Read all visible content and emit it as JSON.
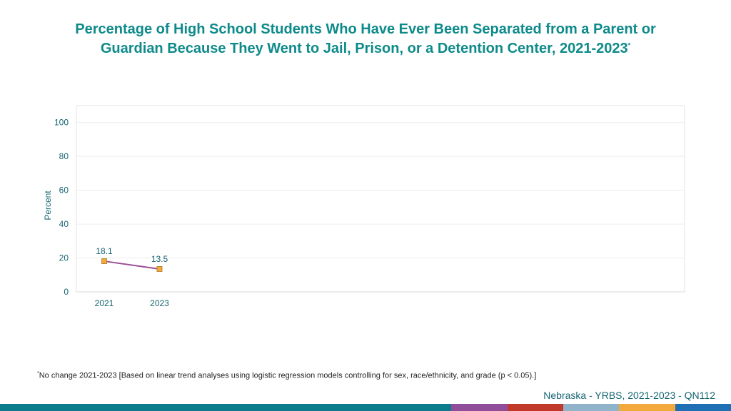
{
  "header": {
    "title_line1": "Percentage of High School Students Who Have Ever Been Separated from a Parent or",
    "title_line2": "Guardian Because They Went to Jail, Prison, or a Detention Center, 2021-2023",
    "title_marker": "*"
  },
  "chart_data": {
    "type": "line",
    "title": "Percentage of High School Students Who Have Ever Been Separated from a Parent or Guardian Because They Went to Jail, Prison, or a Detention Center, 2021-2023",
    "xlabel": "",
    "ylabel": "Percent",
    "x": [
      "2021",
      "2023"
    ],
    "series": [
      {
        "values": [
          18.1,
          13.5
        ],
        "color": "#9b4f96",
        "marker_color": "#f4a93c"
      }
    ],
    "ylim": [
      0,
      110
    ],
    "yticks": [
      0,
      20,
      40,
      60,
      80,
      100
    ],
    "grid": true,
    "legend": "none"
  },
  "footer": {
    "footnote_marker": "*",
    "footnote": "No change 2021-2023 [Based on linear trend analyses using logistic regression models controlling for sex, race/ethnicity, and grade (p < 0.05).]",
    "source": "Nebraska - YRBS, 2021-2023 - QN112"
  },
  "colors": {
    "title": "#0e8a8a",
    "axis_text": "#156570",
    "bar_segments": [
      "#0c7c8c",
      "#8f4d9a",
      "#c0392b",
      "#8fb3c9",
      "#f4a93c",
      "#1f6fb5"
    ]
  }
}
